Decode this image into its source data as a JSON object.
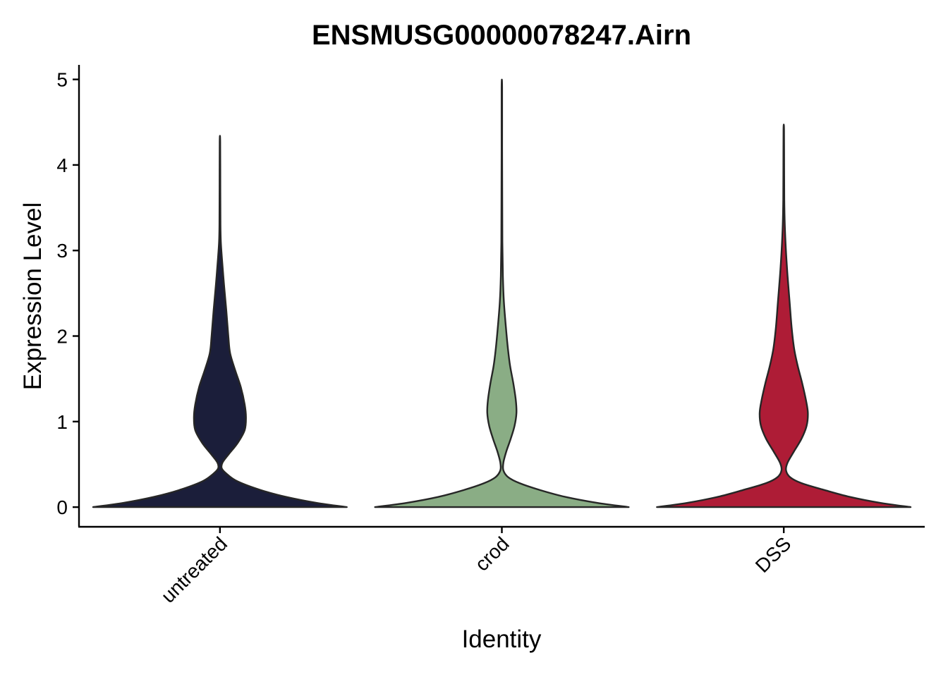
{
  "chart_data": {
    "type": "violin",
    "title": "ENSMUSG00000078247.Airn",
    "xlabel": "Identity",
    "ylabel": "Expression Level",
    "ylim": [
      -0.23,
      5.17
    ],
    "yticks": [
      0,
      1,
      2,
      3,
      4,
      5
    ],
    "grid": false,
    "legend": "none",
    "categories": [
      "untreated",
      "crod",
      "DSS"
    ],
    "series": [
      {
        "category": "untreated",
        "color": "#1b1e3a",
        "max": 4.27,
        "profile": [
          [
            0,
            1.0
          ],
          [
            0.05,
            0.76
          ],
          [
            0.12,
            0.52
          ],
          [
            0.2,
            0.32
          ],
          [
            0.3,
            0.14
          ],
          [
            0.38,
            0.06
          ],
          [
            0.45,
            0.015
          ],
          [
            0.52,
            0.02
          ],
          [
            0.62,
            0.07
          ],
          [
            0.75,
            0.14
          ],
          [
            0.9,
            0.195
          ],
          [
            1.05,
            0.205
          ],
          [
            1.2,
            0.195
          ],
          [
            1.4,
            0.165
          ],
          [
            1.6,
            0.12
          ],
          [
            1.8,
            0.08
          ],
          [
            2.0,
            0.066
          ],
          [
            2.3,
            0.05
          ],
          [
            2.6,
            0.032
          ],
          [
            2.9,
            0.016
          ],
          [
            3.1,
            0.007
          ],
          [
            3.3,
            0.004
          ],
          [
            3.7,
            0.003
          ],
          [
            4.27,
            0.002
          ]
        ]
      },
      {
        "category": "crod",
        "color": "#8aad85",
        "max": 4.91,
        "profile": [
          [
            0,
            1.0
          ],
          [
            0.05,
            0.75
          ],
          [
            0.12,
            0.5
          ],
          [
            0.2,
            0.3
          ],
          [
            0.28,
            0.14
          ],
          [
            0.35,
            0.05
          ],
          [
            0.43,
            0.012
          ],
          [
            0.52,
            0.012
          ],
          [
            0.65,
            0.035
          ],
          [
            0.8,
            0.07
          ],
          [
            0.95,
            0.1
          ],
          [
            1.1,
            0.115
          ],
          [
            1.25,
            0.11
          ],
          [
            1.45,
            0.09
          ],
          [
            1.65,
            0.065
          ],
          [
            1.85,
            0.048
          ],
          [
            2.1,
            0.032
          ],
          [
            2.4,
            0.016
          ],
          [
            2.7,
            0.008
          ],
          [
            3.1,
            0.004
          ],
          [
            3.6,
            0.003
          ],
          [
            4.2,
            0.002
          ],
          [
            4.91,
            0.002
          ]
        ]
      },
      {
        "category": "DSS",
        "color": "#ae1c36",
        "max": 4.42,
        "profile": [
          [
            0,
            1.0
          ],
          [
            0.05,
            0.76
          ],
          [
            0.12,
            0.52
          ],
          [
            0.2,
            0.32
          ],
          [
            0.28,
            0.14
          ],
          [
            0.35,
            0.05
          ],
          [
            0.43,
            0.018
          ],
          [
            0.52,
            0.03
          ],
          [
            0.65,
            0.08
          ],
          [
            0.8,
            0.14
          ],
          [
            0.95,
            0.18
          ],
          [
            1.1,
            0.19
          ],
          [
            1.25,
            0.175
          ],
          [
            1.45,
            0.145
          ],
          [
            1.65,
            0.11
          ],
          [
            1.85,
            0.082
          ],
          [
            2.1,
            0.062
          ],
          [
            2.4,
            0.046
          ],
          [
            2.7,
            0.03
          ],
          [
            3.0,
            0.017
          ],
          [
            3.3,
            0.008
          ],
          [
            3.6,
            0.004
          ],
          [
            4.0,
            0.003
          ],
          [
            4.42,
            0.002
          ]
        ]
      }
    ]
  }
}
